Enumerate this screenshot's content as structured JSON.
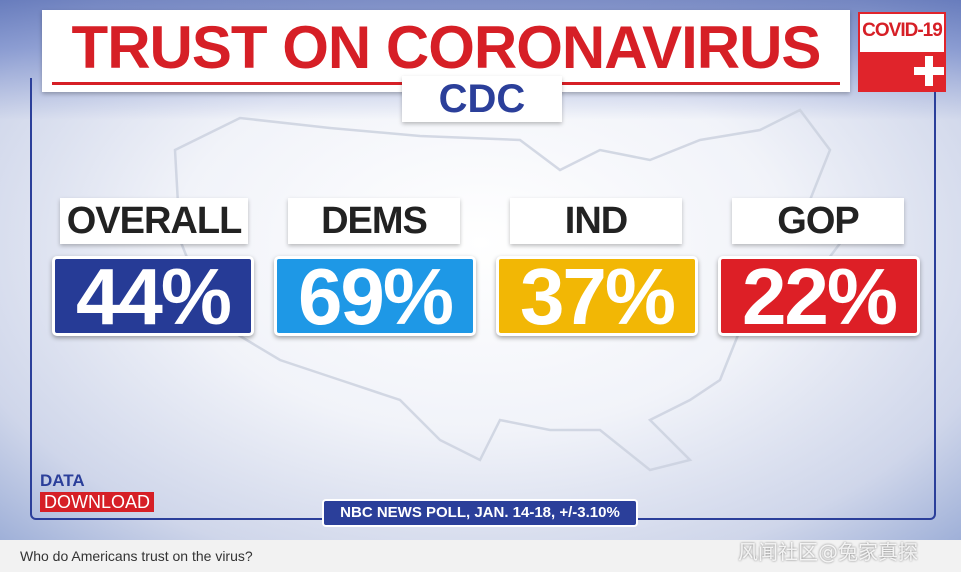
{
  "title": "TRUST ON CORONAVIRUS",
  "subtitle": "CDC",
  "badge": {
    "label": "COVID-19"
  },
  "chart_data": {
    "type": "table",
    "title": "TRUST ON CORONAVIRUS",
    "subtitle": "CDC",
    "categories": [
      "OVERALL",
      "DEMS",
      "IND",
      "GOP"
    ],
    "values": [
      44,
      69,
      37,
      22
    ],
    "value_labels": [
      "44%",
      "69%",
      "37%",
      "22%"
    ],
    "colors": [
      "#263b96",
      "#1e98e6",
      "#f2b705",
      "#dd1f26"
    ],
    "unit": "%"
  },
  "brand": {
    "line1": "DATA",
    "line2": "DOWNLOAD"
  },
  "source": "NBC NEWS POLL, JAN. 14-18, +/-3.10%",
  "caption": "Who do Americans trust on the virus?",
  "watermark": "风闻社区@兔家真探"
}
